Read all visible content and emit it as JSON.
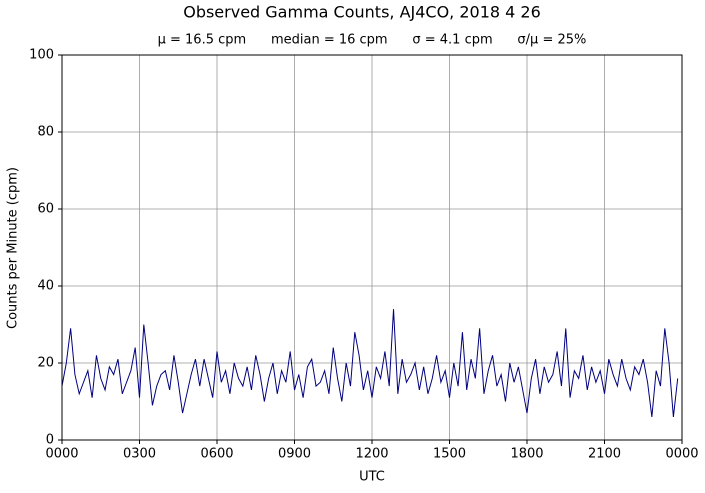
{
  "chart_data": {
    "type": "line",
    "title": "Observed Gamma Counts, AJ4CO, 2018 4 26",
    "subtitle": "μ = 16.5 cpm      median = 16 cpm      σ = 4.1 cpm      σ/μ = 25%",
    "xlabel": "UTC",
    "ylabel": "Counts per Minute (cpm)",
    "xlim": [
      0,
      1440
    ],
    "xticks": [
      {
        "value": 0,
        "label": "0000"
      },
      {
        "value": 180,
        "label": "0300"
      },
      {
        "value": 360,
        "label": "0600"
      },
      {
        "value": 540,
        "label": "0900"
      },
      {
        "value": 720,
        "label": "1200"
      },
      {
        "value": 900,
        "label": "1500"
      },
      {
        "value": 1080,
        "label": "1800"
      },
      {
        "value": 1260,
        "label": "2100"
      },
      {
        "value": 1440,
        "label": "0000"
      }
    ],
    "ylim": [
      0,
      100
    ],
    "yticks": [
      0,
      20,
      40,
      60,
      80,
      100
    ],
    "grid": true,
    "x": [
      0,
      10,
      20,
      30,
      40,
      50,
      60,
      70,
      80,
      90,
      100,
      110,
      120,
      130,
      140,
      150,
      160,
      170,
      180,
      190,
      200,
      210,
      220,
      230,
      240,
      250,
      260,
      270,
      280,
      290,
      300,
      310,
      320,
      330,
      340,
      350,
      360,
      370,
      380,
      390,
      400,
      410,
      420,
      430,
      440,
      450,
      460,
      470,
      480,
      490,
      500,
      510,
      520,
      530,
      540,
      550,
      560,
      570,
      580,
      590,
      600,
      610,
      620,
      630,
      640,
      650,
      660,
      670,
      680,
      690,
      700,
      710,
      720,
      730,
      740,
      750,
      760,
      770,
      780,
      790,
      800,
      810,
      820,
      830,
      840,
      850,
      860,
      870,
      880,
      890,
      900,
      910,
      920,
      930,
      940,
      950,
      960,
      970,
      980,
      990,
      1000,
      1010,
      1020,
      1030,
      1040,
      1050,
      1060,
      1070,
      1080,
      1090,
      1100,
      1110,
      1120,
      1130,
      1140,
      1150,
      1160,
      1170,
      1180,
      1190,
      1200,
      1210,
      1220,
      1230,
      1240,
      1250,
      1260,
      1270,
      1280,
      1290,
      1300,
      1310,
      1320,
      1330,
      1340,
      1350,
      1360,
      1370,
      1380,
      1390,
      1400,
      1410,
      1420,
      1430
    ],
    "series": [
      {
        "name": "counts",
        "color": "#000080",
        "values": [
          14,
          20,
          29,
          17,
          12,
          15,
          18,
          11,
          22,
          16,
          13,
          19,
          17,
          21,
          12,
          15,
          18,
          24,
          11,
          30,
          20,
          9,
          14,
          17,
          18,
          13,
          22,
          15,
          7,
          12,
          17,
          21,
          14,
          21,
          16,
          11,
          23,
          15,
          18,
          12,
          20,
          16,
          14,
          19,
          13,
          22,
          17,
          10,
          16,
          20,
          12,
          18,
          15,
          23,
          13,
          17,
          11,
          19,
          21,
          14,
          15,
          18,
          12,
          24,
          16,
          10,
          20,
          14,
          28,
          22,
          13,
          18,
          11,
          19,
          16,
          23,
          14,
          34,
          12,
          21,
          15,
          17,
          20,
          13,
          19,
          12,
          16,
          22,
          15,
          18,
          11,
          20,
          14,
          28,
          13,
          21,
          16,
          29,
          12,
          18,
          22,
          14,
          17,
          10,
          20,
          15,
          19,
          13,
          7,
          16,
          21,
          12,
          19,
          15,
          17,
          23,
          14,
          29,
          11,
          18,
          16,
          22,
          13,
          19,
          15,
          18,
          12,
          21,
          17,
          14,
          21,
          16,
          13,
          19,
          17,
          21,
          15,
          6,
          18,
          14,
          29,
          20,
          6,
          16
        ]
      }
    ]
  }
}
